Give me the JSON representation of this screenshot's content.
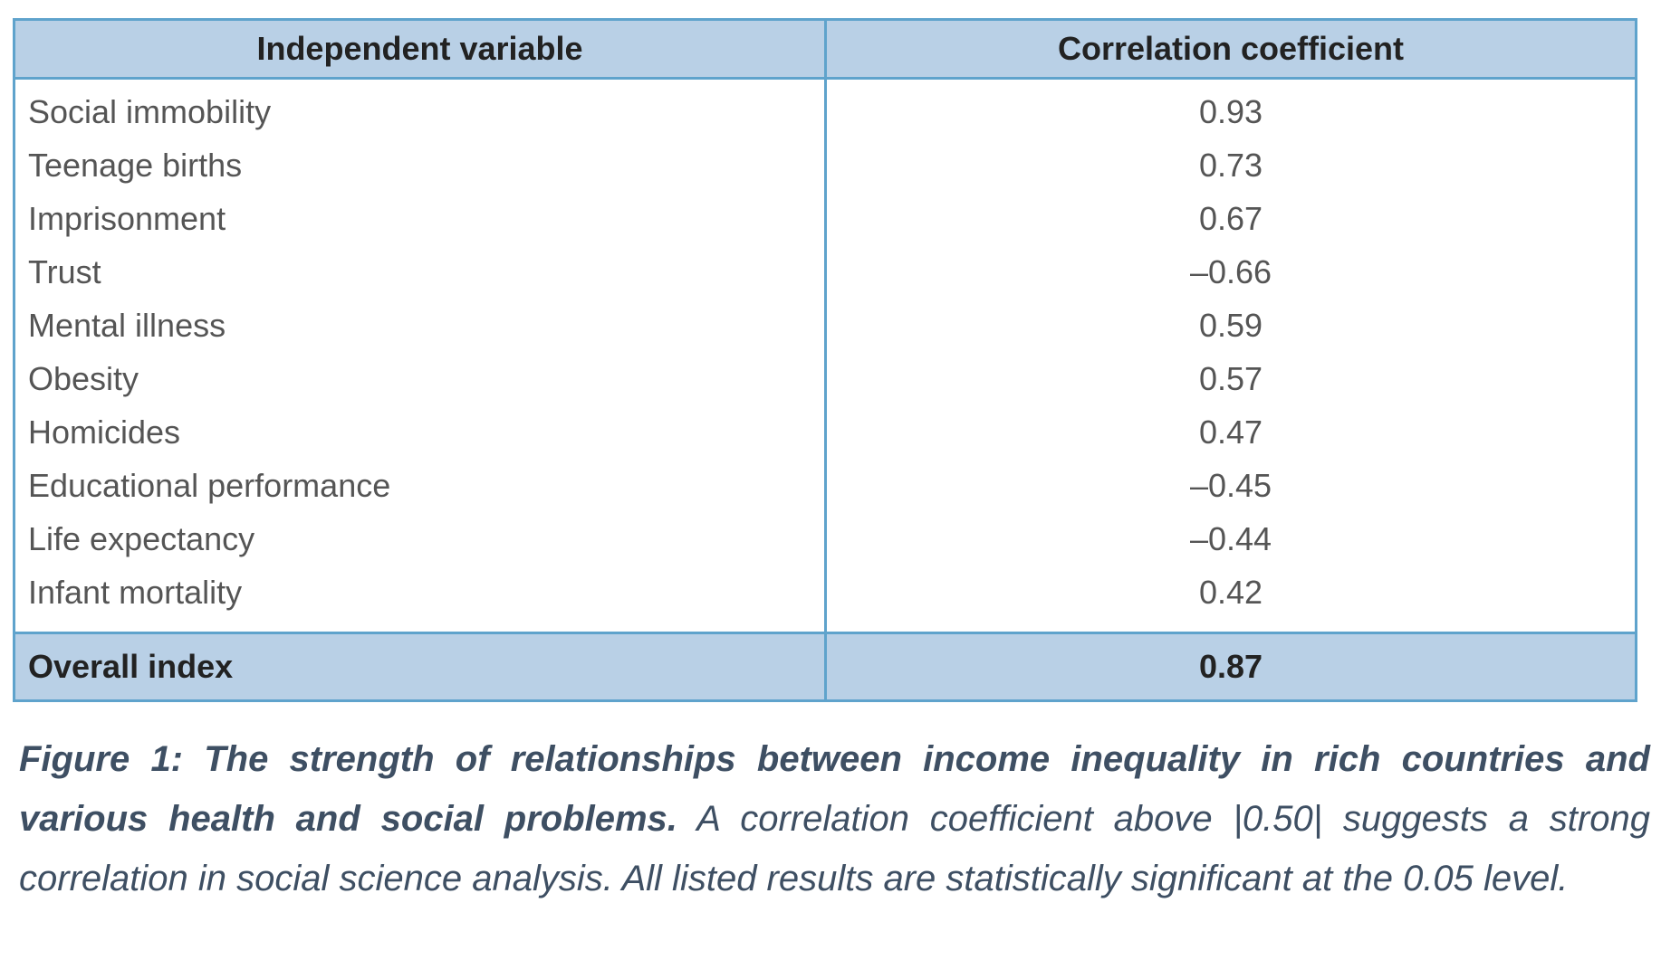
{
  "table": {
    "header": [
      "Independent variable",
      "Correlation coefficient"
    ],
    "rows": [
      [
        "Social immobility",
        "0.93"
      ],
      [
        "Teenage births",
        "0.73"
      ],
      [
        "Imprisonment",
        "0.67"
      ],
      [
        "Trust",
        "–0.66"
      ],
      [
        "Mental illness",
        "0.59"
      ],
      [
        "Obesity",
        "0.57"
      ],
      [
        "Homicides",
        "0.47"
      ],
      [
        "Educational performance",
        "–0.45"
      ],
      [
        "Life expectancy",
        "–0.44"
      ],
      [
        "Infant mortality",
        "0.42"
      ]
    ],
    "footer": [
      "Overall index",
      "0.87"
    ]
  },
  "caption": {
    "title": "Figure 1: The strength of relationships between income inequality in rich countries and various health and social problems.",
    "text": "A correlation coefficient above |0.50| suggests a strong correlation in social science analysis. All listed results are statistically significant at the 0.05 level."
  }
}
